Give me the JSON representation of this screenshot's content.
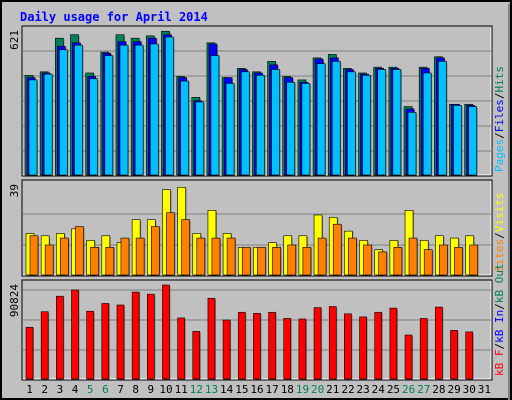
{
  "colors": {
    "background": "#c0c0c0",
    "plot_background": "#c0c0c0",
    "hits": "#00805c",
    "files": "#0000ff",
    "pages": "#00c0ff",
    "visits": "#ffff00",
    "sites": "#ff8000",
    "kbytes": "#ff0000",
    "title": "#0000ff",
    "weekend_label": "#00805c",
    "weekday_label": "#000000"
  },
  "chart_data": {
    "type": "bar",
    "title": "Daily usage for April 2014",
    "x_labels": [
      "1",
      "2",
      "3",
      "4",
      "5",
      "6",
      "7",
      "8",
      "9",
      "10",
      "11",
      "12",
      "13",
      "14",
      "15",
      "16",
      "17",
      "18",
      "19",
      "20",
      "21",
      "22",
      "23",
      "24",
      "25",
      "26",
      "27",
      "28",
      "29",
      "30",
      "31"
    ],
    "weekend_days": [
      "5",
      "6",
      "12",
      "13",
      "19",
      "20",
      "26",
      "27"
    ],
    "panels": [
      {
        "name": "traffic",
        "y_max_label": "621",
        "y_max": 621,
        "legend": [
          "Pages",
          "Files",
          "Hits"
        ],
        "series": [
          {
            "name": "Hits",
            "values": [
              430,
              445,
              590,
              605,
              440,
              530,
              605,
              590,
              600,
              620,
              425,
              335,
              570,
              420,
              460,
              445,
              490,
              425,
              410,
              505,
              520,
              460,
              440,
              465,
              465,
              295,
              465,
              510,
              305,
              305,
              null
            ]
          },
          {
            "name": "Files",
            "values": [
              420,
              440,
              555,
              570,
              425,
              525,
              575,
              575,
              590,
              605,
              420,
              320,
              565,
              420,
              455,
              440,
              475,
              420,
              400,
              500,
              505,
              455,
              435,
              460,
              460,
              285,
              460,
              505,
              305,
              300,
              null
            ]
          },
          {
            "name": "Pages",
            "values": [
              410,
              435,
              540,
              560,
              415,
              515,
              560,
              560,
              565,
              595,
              405,
              315,
              515,
              395,
              445,
              430,
              455,
              400,
              395,
              480,
              490,
              445,
              430,
              455,
              455,
              270,
              440,
              490,
              300,
              295,
              null
            ]
          }
        ]
      },
      {
        "name": "visitors",
        "y_max_label": "39",
        "y_max": 39,
        "legend": [
          "Sites",
          "Visits"
        ],
        "series": [
          {
            "name": "Visits",
            "values": [
              18,
              17,
              18,
              20,
              15,
              17,
              14,
              24,
              24,
              37,
              38,
              18,
              28,
              18,
              12,
              12,
              14,
              17,
              17,
              26,
              25,
              19,
              15,
              11,
              15,
              28,
              15,
              17,
              16,
              17,
              null
            ]
          },
          {
            "name": "Sites",
            "values": [
              17,
              13,
              16,
              21,
              12,
              12,
              16,
              16,
              21,
              27,
              24,
              16,
              16,
              16,
              12,
              12,
              12,
              13,
              12,
              16,
              22,
              16,
              13,
              10,
              12,
              16,
              11,
              13,
              12,
              13,
              null
            ]
          }
        ]
      },
      {
        "name": "volume",
        "y_max_label": "90824",
        "y_max": 90824,
        "legend": [
          "kB F",
          "kB In",
          "kB Out"
        ],
        "series": [
          {
            "name": "kB F",
            "values": [
              50000,
              65000,
              80000,
              86000,
              65500,
              73000,
              71500,
              84000,
              82000,
              90824,
              59000,
              46000,
              78000,
              57000,
              64500,
              63500,
              64500,
              58500,
              58000,
              69000,
              70000,
              63000,
              60000,
              64500,
              68500,
              42500,
              58500,
              69500,
              47000,
              45500,
              null
            ]
          }
        ]
      }
    ]
  }
}
